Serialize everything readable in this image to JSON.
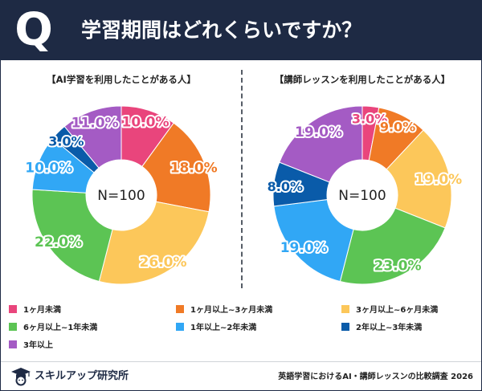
{
  "header": {
    "q_mark": "Q",
    "title": "学習期間はどれくらいですか？"
  },
  "colors": {
    "navy": "#1e2a44",
    "pink": "#e9457c",
    "orange": "#f07a26",
    "yellow": "#fcc75a",
    "green": "#5cc454",
    "lightblue": "#31a7f5",
    "darkblue": "#0a5ba9",
    "purple": "#a45bc4"
  },
  "chart_data": [
    {
      "type": "pie",
      "title": "【AI学習を利用したことがある人】",
      "center_label": "N=100",
      "unit": "%",
      "categories": [
        "1ヶ月未満",
        "1ヶ月以上~3ヶ月未満",
        "3ヶ月以上~6ヶ月未満",
        "6ヶ月以上~1年未満",
        "1年以上~2年未満",
        "2年以上~3年未満",
        "3年以上"
      ],
      "values": [
        10.0,
        18.0,
        26.0,
        22.0,
        10.0,
        3.0,
        11.0
      ],
      "labels": [
        "10.0%",
        "18.0%",
        "26.0%",
        "22.0%",
        "10.0%",
        "3.0%",
        "11.0%"
      ]
    },
    {
      "type": "pie",
      "title": "【講師レッスンを利用したことがある人】",
      "center_label": "N=100",
      "unit": "%",
      "categories": [
        "1ヶ月未満",
        "1ヶ月以上~3ヶ月未満",
        "3ヶ月以上~6ヶ月未満",
        "6ヶ月以上~1年未満",
        "1年以上~2年未満",
        "2年以上~3年未満",
        "3年以上"
      ],
      "values": [
        3.0,
        9.0,
        19.0,
        23.0,
        19.0,
        8.0,
        19.0
      ],
      "labels": [
        "3.0%",
        "9.0%",
        "19.0%",
        "23.0%",
        "19.0%",
        "8.0%",
        "19.0%"
      ]
    }
  ],
  "legend": {
    "items": [
      {
        "label": "1ヶ月未満",
        "color": "#e9457c"
      },
      {
        "label": "1ヶ月以上~3ヶ月未満",
        "color": "#f07a26"
      },
      {
        "label": "3ヶ月以上~6ヶ月未満",
        "color": "#fcc75a"
      },
      {
        "label": "6ヶ月以上~1年未満",
        "color": "#5cc454"
      },
      {
        "label": "1年以上~2年未満",
        "color": "#31a7f5"
      },
      {
        "label": "2年以上~3年未満",
        "color": "#0a5ba9"
      },
      {
        "label": "3年以上",
        "color": "#a45bc4"
      }
    ]
  },
  "footer": {
    "brand_name": "スキルアップ研究所",
    "brand_icon": "graduation-cap-icon",
    "note": "英語学習におけるAI・講師レッスンの比較調査 2026"
  }
}
